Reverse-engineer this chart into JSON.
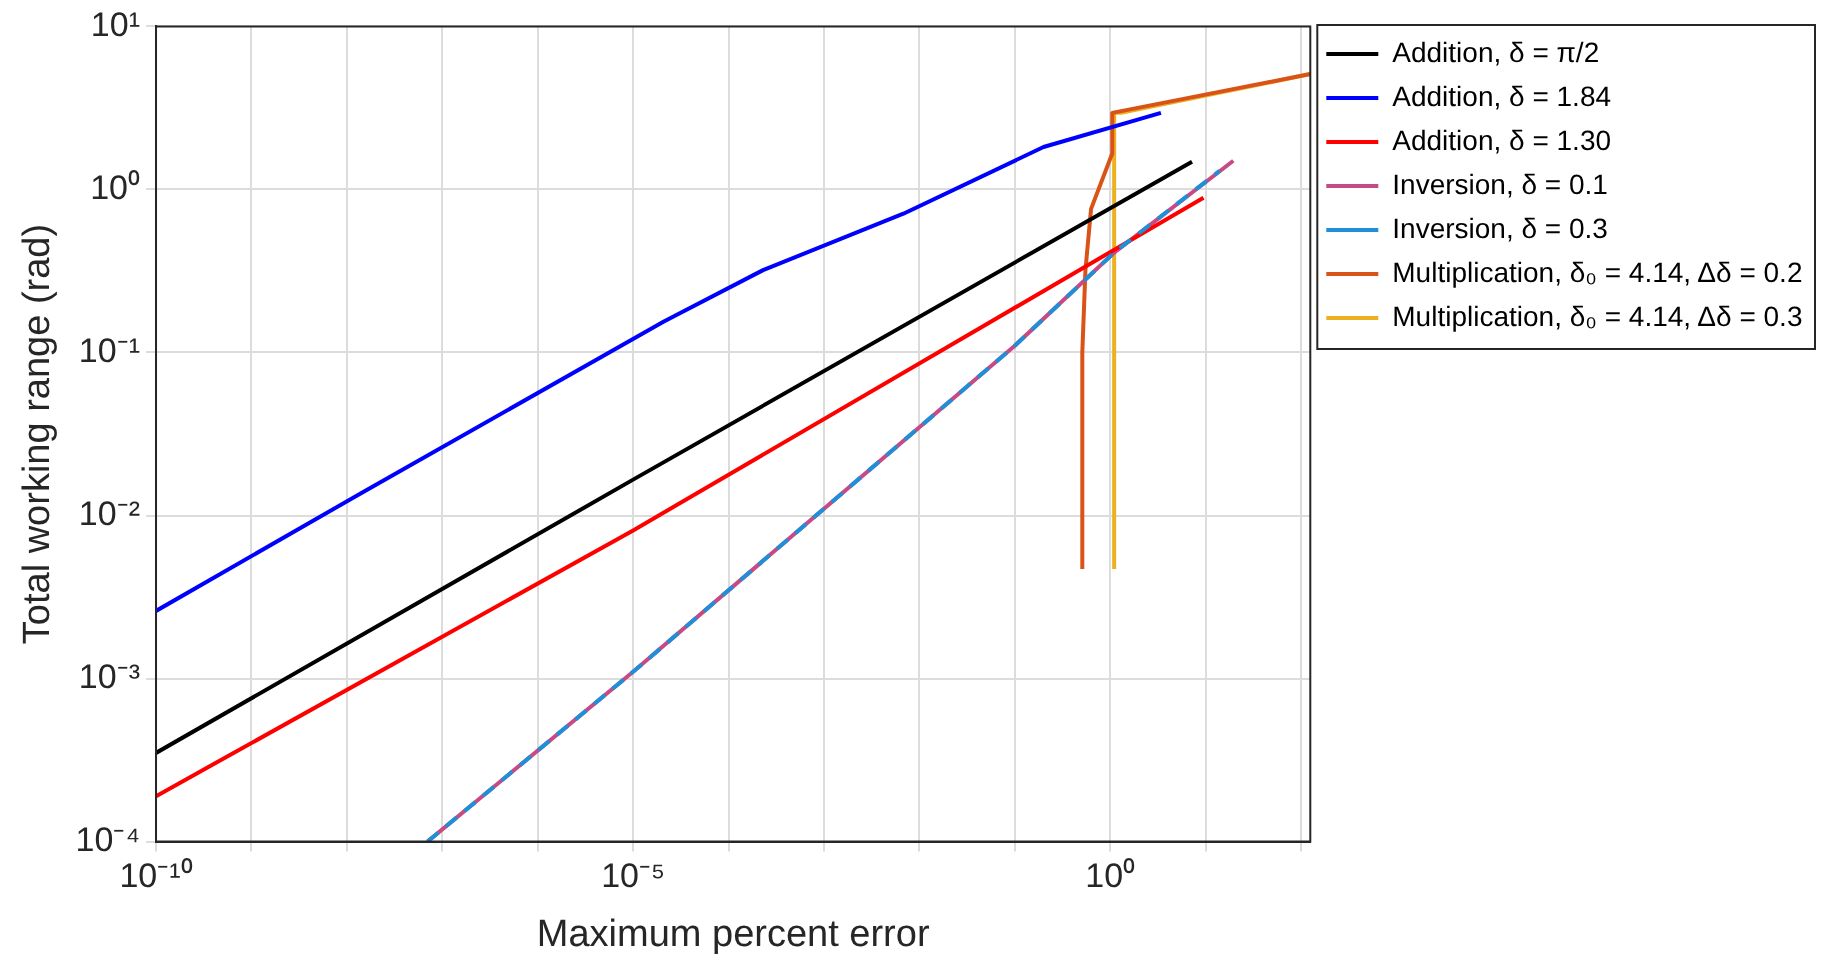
{
  "chart_data": {
    "type": "line",
    "xlabel": "Maximum percent error",
    "ylabel": "Total working range (rad)",
    "log": "xy",
    "grid": true,
    "legend": "right",
    "marker": "none",
    "xlim": [
      1e-10,
      125
    ],
    "ylim": [
      0.0001,
      10
    ],
    "xticks": [
      {
        "value": 1e-10,
        "label": "10⁻¹⁰"
      },
      {
        "value": 1e-09,
        "label": null
      },
      {
        "value": 1e-08,
        "label": null
      },
      {
        "value": 1e-07,
        "label": null
      },
      {
        "value": 1e-06,
        "label": null
      },
      {
        "value": 1e-05,
        "label": "10⁻⁵"
      },
      {
        "value": 0.0001,
        "label": null
      },
      {
        "value": 0.001,
        "label": null
      },
      {
        "value": 0.01,
        "label": null
      },
      {
        "value": 0.1,
        "label": null
      },
      {
        "value": 1,
        "label": "10⁰"
      },
      {
        "value": 10,
        "label": null
      },
      {
        "value": 100,
        "label": null
      }
    ],
    "yticks": [
      {
        "value": 0.0001,
        "label": "10⁻⁴"
      },
      {
        "value": 0.001,
        "label": "10⁻³"
      },
      {
        "value": 0.01,
        "label": "10⁻²"
      },
      {
        "value": 0.1,
        "label": "10⁻¹"
      },
      {
        "value": 1,
        "label": "10⁰"
      },
      {
        "value": 10,
        "label": "10¹"
      }
    ],
    "series": [
      {
        "name": "Addition, δ = π/2",
        "color": "#000000",
        "line_style": "solid",
        "x": [
          1e-10,
          1e-05,
          7.2
        ],
        "values": [
          0.00035,
          0.0166,
          1.48
        ]
      },
      {
        "name": "Addition, δ = 1.84",
        "color": "#0000ff",
        "line_style": "solid",
        "x": [
          1e-10,
          1.5e-08,
          2.1e-05,
          0.00023,
          0.0068,
          0.2,
          3.4
        ],
        "values": [
          0.0026,
          0.014,
          0.155,
          0.32,
          0.71,
          1.82,
          2.95
        ]
      },
      {
        "name": "Addition, δ = 1.30",
        "color": "#ff0000",
        "line_style": "solid",
        "x": [
          1e-10,
          1e-05,
          9.5
        ],
        "values": [
          0.00019,
          0.0081,
          0.89
        ]
      },
      {
        "name": "Inversion, δ = 0.1",
        "color": "#c44b86",
        "line_style": "solid",
        "x": [
          7e-08,
          1e-05,
          0.001,
          0.1,
          1.1,
          19.5
        ],
        "values": [
          0.0001,
          0.0011,
          0.011,
          0.11,
          0.41,
          1.5
        ]
      },
      {
        "name": "Inversion, δ = 0.3",
        "color": "#1f8fd8",
        "line_style": "dashed",
        "x": [
          7e-08,
          1e-05,
          0.001,
          0.1,
          1.1,
          14
        ],
        "values": [
          0.0001,
          0.0011,
          0.011,
          0.11,
          0.41,
          1.3
        ]
      },
      {
        "name": "Multiplication, δ₀ = 4.14, Δδ = 0.2",
        "color": "#d95319",
        "line_style": "solid",
        "x": [
          0.51,
          0.51,
          0.55,
          0.63,
          1.05,
          1.05,
          125
        ],
        "values": [
          0.0047,
          0.1,
          0.32,
          0.76,
          1.66,
          2.95,
          5.1
        ]
      },
      {
        "name": "Multiplication, δ₀ = 4.14, Δδ = 0.3",
        "color": "#edb120",
        "line_style": "solid",
        "x": [
          1.1,
          1.1,
          1.3,
          125
        ],
        "values": [
          0.0047,
          2.95,
          2.95,
          5.1
        ]
      }
    ]
  }
}
